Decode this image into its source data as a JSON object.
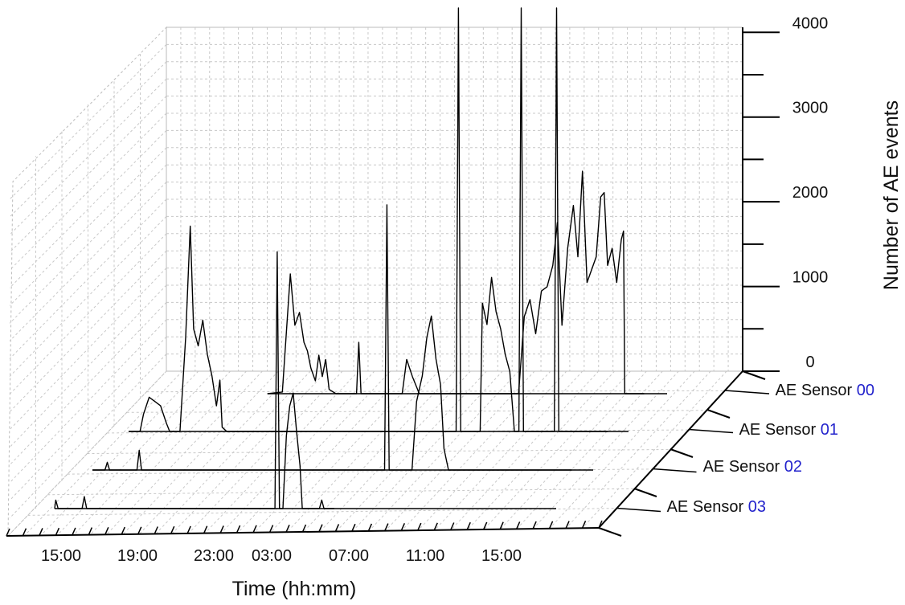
{
  "chart_data": {
    "type": "line",
    "projection": "3d-waterfall",
    "xlabel": "Time (hh:mm)",
    "zlabel": "Number of AE events",
    "x_ticks": [
      "15:00",
      "19:00",
      "23:00",
      "03:00",
      "07:00",
      "11:00",
      "15:00"
    ],
    "x_range": [
      "13:00",
      "19:00 (next day)"
    ],
    "z_ticks": [
      "0",
      "1000",
      "2000",
      "3000",
      "4000"
    ],
    "zlim": [
      0,
      4000
    ],
    "grid": true,
    "series_label_prefix": "AE Sensor ",
    "series": [
      {
        "sensor_prefix": "AE Sensor ",
        "sensor_id": "00",
        "points": [
          [
            22,
            0
          ],
          [
            23.3,
            20
          ],
          [
            24,
            1400
          ],
          [
            24.4,
            800
          ],
          [
            24.8,
            950
          ],
          [
            25.2,
            600
          ],
          [
            25.5,
            500
          ],
          [
            25.8,
            300
          ],
          [
            26.2,
            150
          ],
          [
            26.5,
            450
          ],
          [
            26.8,
            200
          ],
          [
            27.1,
            400
          ],
          [
            27.4,
            50
          ],
          [
            28,
            0
          ],
          [
            29.8,
            0
          ],
          [
            30,
            600
          ],
          [
            30.2,
            0
          ],
          [
            33.8,
            0
          ],
          [
            34.2,
            400
          ],
          [
            34.7,
            200
          ],
          [
            35.3,
            0
          ],
          [
            44,
            0
          ],
          [
            44.5,
            900
          ],
          [
            45,
            1100
          ],
          [
            45.5,
            700
          ],
          [
            46,
            1200
          ],
          [
            46.5,
            1250
          ],
          [
            47,
            1500
          ],
          [
            47.4,
            2000
          ],
          [
            47.8,
            800
          ],
          [
            48.3,
            1700
          ],
          [
            48.8,
            2200
          ],
          [
            49.2,
            1600
          ],
          [
            49.6,
            2600
          ],
          [
            50,
            1300
          ],
          [
            50.4,
            1450
          ],
          [
            50.8,
            1600
          ],
          [
            51.2,
            2300
          ],
          [
            51.5,
            2350
          ],
          [
            51.8,
            1500
          ],
          [
            52.2,
            1700
          ],
          [
            52.6,
            1300
          ],
          [
            53,
            1800
          ],
          [
            53.2,
            1900
          ],
          [
            53.3,
            0
          ],
          [
            54.3,
            0
          ],
          [
            55,
            0
          ]
        ]
      },
      {
        "sensor_prefix": "AE Sensor ",
        "sensor_id": "01",
        "points": [
          [
            13,
            0
          ],
          [
            14,
            0
          ],
          [
            14.3,
            200
          ],
          [
            14.8,
            400
          ],
          [
            15.3,
            350
          ],
          [
            15.8,
            300
          ],
          [
            16.3,
            100
          ],
          [
            16.6,
            0
          ],
          [
            17.5,
            0
          ],
          [
            18,
            1100
          ],
          [
            18.4,
            2400
          ],
          [
            18.7,
            1200
          ],
          [
            19.1,
            1000
          ],
          [
            19.5,
            1300
          ],
          [
            19.9,
            900
          ],
          [
            20.3,
            650
          ],
          [
            20.7,
            300
          ],
          [
            21,
            600
          ],
          [
            21.2,
            50
          ],
          [
            21.6,
            0
          ],
          [
            28,
            0
          ],
          [
            41.7,
            0
          ],
          [
            41.9,
            5400
          ],
          [
            42.1,
            0
          ],
          [
            43.8,
            0
          ],
          [
            44,
            1500
          ],
          [
            44.4,
            1250
          ],
          [
            44.8,
            1800
          ],
          [
            45.2,
            1400
          ],
          [
            45.6,
            1200
          ],
          [
            46,
            900
          ],
          [
            46.4,
            700
          ],
          [
            46.8,
            0
          ],
          [
            47.2,
            0
          ],
          [
            47.4,
            6900
          ],
          [
            47.6,
            0
          ],
          [
            50.3,
            0
          ],
          [
            50.5,
            8000
          ],
          [
            50.7,
            0
          ],
          [
            51.5,
            0
          ],
          [
            54,
            0
          ],
          [
            55,
            0
          ]
        ]
      },
      {
        "sensor_prefix": "AE Sensor ",
        "sensor_id": "02",
        "points": [
          [
            13,
            0
          ],
          [
            14.1,
            0
          ],
          [
            14.3,
            90
          ],
          [
            14.5,
            0
          ],
          [
            16.9,
            0
          ],
          [
            17.1,
            230
          ],
          [
            17.3,
            0
          ],
          [
            38.6,
            0
          ],
          [
            38.8,
            3100
          ],
          [
            39.0,
            0
          ],
          [
            41,
            0
          ],
          [
            41.4,
            800
          ],
          [
            41.9,
            1100
          ],
          [
            42.3,
            1550
          ],
          [
            42.7,
            1800
          ],
          [
            43.1,
            1300
          ],
          [
            43.5,
            1000
          ],
          [
            43.8,
            250
          ],
          [
            44.2,
            0
          ],
          [
            47,
            0
          ],
          [
            55,
            0
          ]
        ]
      },
      {
        "sensor_prefix": "AE Sensor ",
        "sensor_id": "03",
        "points": [
          [
            13,
            0
          ],
          [
            13.1,
            100
          ],
          [
            13.3,
            0
          ],
          [
            15.4,
            0
          ],
          [
            15.6,
            140
          ],
          [
            15.8,
            0
          ],
          [
            32.3,
            0
          ],
          [
            32.5,
            3000
          ],
          [
            32.7,
            0
          ],
          [
            33,
            0
          ],
          [
            33.3,
            850
          ],
          [
            33.6,
            1200
          ],
          [
            33.9,
            1350
          ],
          [
            34.2,
            900
          ],
          [
            34.5,
            500
          ],
          [
            34.7,
            0
          ],
          [
            36.2,
            0
          ],
          [
            36.4,
            100
          ],
          [
            36.6,
            0
          ],
          [
            37.5,
            0
          ]
        ]
      }
    ]
  }
}
